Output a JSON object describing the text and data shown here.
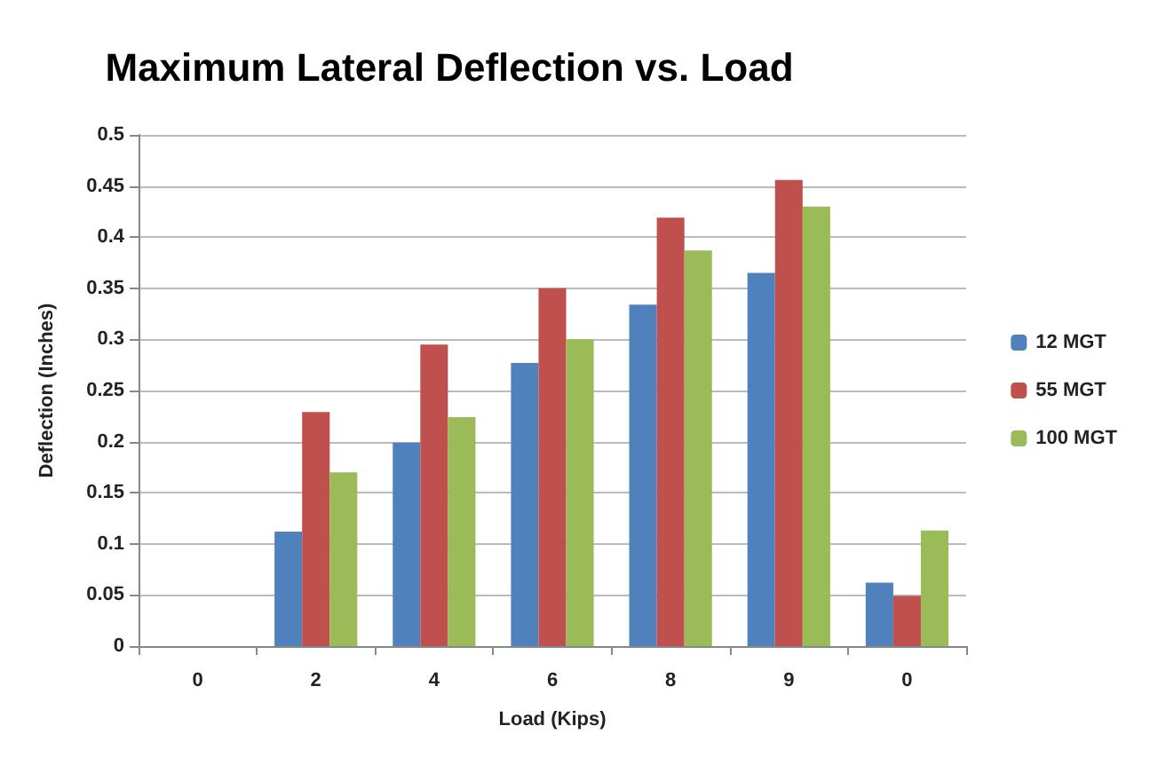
{
  "chart_data": {
    "type": "bar",
    "title": "Maximum Lateral Deflection vs. Load",
    "xlabel": "Load (Kips)",
    "ylabel": "Deflection (Inches)",
    "categories": [
      "0",
      "2",
      "4",
      "6",
      "8",
      "9",
      "0"
    ],
    "series": [
      {
        "name": "12 MGT",
        "color": "#4f81bd",
        "values": [
          null,
          0.112,
          0.199,
          0.277,
          0.334,
          0.365,
          0.062
        ]
      },
      {
        "name": "55 MGT",
        "color": "#c0504d",
        "values": [
          null,
          0.229,
          0.295,
          0.35,
          0.419,
          0.456,
          0.049
        ]
      },
      {
        "name": "100 MGT",
        "color": "#9bbb59",
        "values": [
          null,
          0.17,
          0.224,
          0.3,
          0.387,
          0.43,
          0.113
        ]
      }
    ],
    "ylim": [
      0,
      0.5
    ],
    "yticks": [
      0,
      0.05,
      0.1,
      0.15,
      0.2,
      0.25,
      0.3,
      0.35,
      0.4,
      0.45,
      0.5
    ],
    "grid": "y",
    "legend": "right"
  }
}
